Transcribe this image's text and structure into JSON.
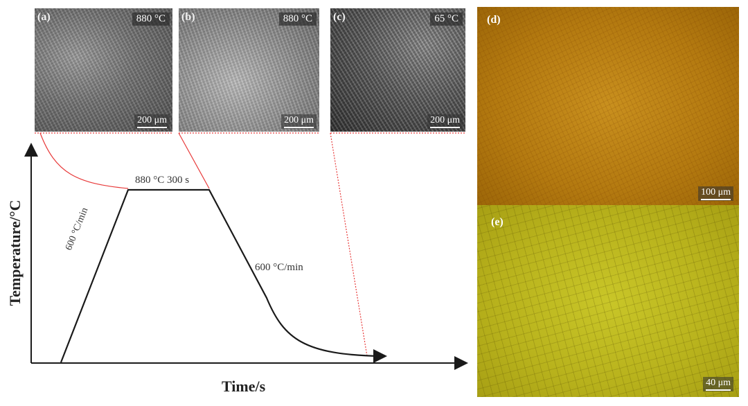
{
  "panels": {
    "a": {
      "letter": "(a)",
      "temperature": "880 °C",
      "scale": "200 μm"
    },
    "b": {
      "letter": "(b)",
      "temperature": "880 °C",
      "scale": "200 μm"
    },
    "c": {
      "letter": "(c)",
      "temperature": "65 °C",
      "scale": "200 μm"
    },
    "d": {
      "letter": "(d)",
      "scale": "100 μm"
    },
    "e": {
      "letter": "(e)",
      "scale": "40 μm"
    }
  },
  "diagram": {
    "y_label": "Temperature/°C",
    "x_label": "Time/s",
    "hold_label": "880 °C 300 s",
    "heating_rate": "600 °C/min",
    "cooling_rate": "600 °C/min"
  },
  "colors": {
    "connector": "#e83a3a",
    "curve": "#1a1a1a"
  }
}
